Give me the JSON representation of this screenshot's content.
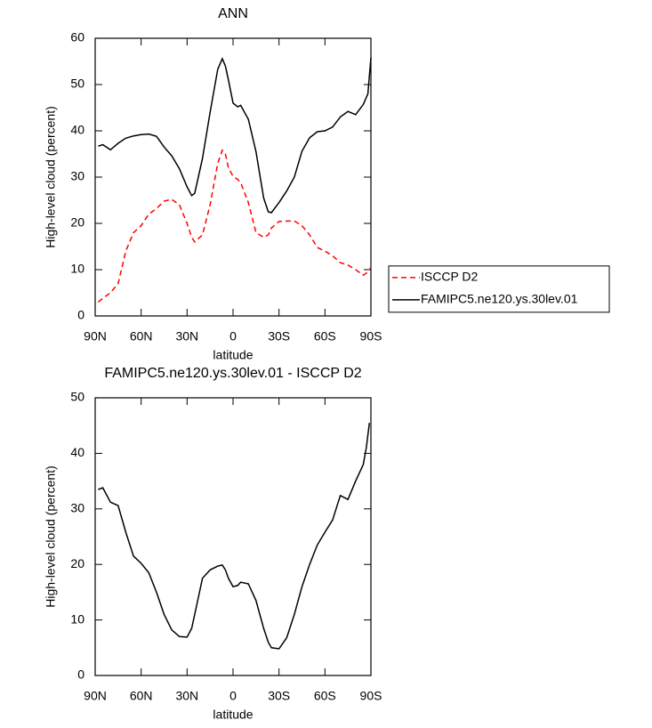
{
  "chart_data": [
    {
      "type": "line",
      "title": "ANN",
      "xlabel": "latitude",
      "ylabel": "High-level cloud (percent)",
      "x": [
        88,
        85,
        80,
        75,
        70,
        65,
        60,
        55,
        50,
        45,
        40,
        35,
        30,
        27,
        25,
        20,
        15,
        10,
        7,
        5,
        3,
        0,
        -3,
        -5,
        -10,
        -15,
        -20,
        -23,
        -25,
        -30,
        -35,
        -40,
        -45,
        -50,
        -55,
        -60,
        -65,
        -70,
        -75,
        -80,
        -85,
        -88,
        -90
      ],
      "series": [
        {
          "name": "ISCCP D2",
          "color": "#ff0000",
          "linestyle": "dashed",
          "values": [
            3,
            3.8,
            5,
            7,
            14,
            18,
            19.5,
            22,
            23.2,
            24.8,
            25.2,
            24,
            20,
            17,
            16,
            17.5,
            24,
            33,
            35.8,
            35,
            32,
            30.2,
            29.5,
            28.8,
            24.5,
            18,
            17,
            17.5,
            19,
            20.4,
            20.5,
            20.5,
            19.5,
            17.5,
            14.8,
            14,
            13,
            11.5,
            11,
            10,
            8.8,
            9.5,
            10.5
          ]
        },
        {
          "name": "FAMIPC5.ne120.ys.30lev.01",
          "color": "#000000",
          "linestyle": "solid",
          "values": [
            36.7,
            37,
            35.9,
            37.3,
            38.4,
            38.9,
            39.2,
            39.3,
            38.8,
            36.5,
            34.6,
            31.8,
            27.9,
            26,
            26.5,
            34,
            44,
            53.3,
            55.6,
            54,
            51,
            46,
            45.2,
            45.5,
            42.5,
            35.5,
            25.5,
            22.5,
            22.3,
            24.5,
            27,
            30,
            35.6,
            38.5,
            39.8,
            40,
            40.8,
            43,
            44.2,
            43.5,
            45.7,
            48,
            55.8
          ]
        }
      ],
      "xlim": [
        90,
        -90
      ],
      "xticks": [
        {
          "value": 90,
          "label": "90N"
        },
        {
          "value": 60,
          "label": "60N"
        },
        {
          "value": 30,
          "label": "30N"
        },
        0,
        {
          "value": -30,
          "label": "30S"
        },
        {
          "value": -60,
          "label": "60S"
        },
        {
          "value": -90,
          "label": "90S"
        }
      ],
      "ylim": [
        0,
        60
      ],
      "yticks": [
        0,
        10,
        20,
        30,
        40,
        50,
        60
      ],
      "grid": false,
      "legend": "right"
    },
    {
      "type": "line",
      "title": "FAMIPC5.ne120.ys.30lev.01 - ISCCP D2",
      "xlabel": "latitude",
      "ylabel": "High-level cloud (percent)",
      "x": [
        88,
        85,
        80,
        75,
        70,
        65,
        60,
        55,
        50,
        45,
        40,
        35,
        30,
        27,
        25,
        20,
        15,
        10,
        7,
        5,
        3,
        0,
        -3,
        -5,
        -10,
        -15,
        -20,
        -23,
        -25,
        -30,
        -35,
        -40,
        -45,
        -50,
        -55,
        -60,
        -65,
        -70,
        -75,
        -80,
        -85,
        -87,
        -89
      ],
      "series": [
        {
          "color": "#000000",
          "linestyle": "solid",
          "values": [
            33.5,
            33.8,
            31.2,
            30.6,
            25.8,
            21.5,
            20.2,
            18.5,
            15,
            11,
            8.2,
            7,
            6.9,
            8.5,
            11,
            17.5,
            19,
            19.7,
            19.9,
            19,
            17.5,
            16,
            16.2,
            16.8,
            16.5,
            13.5,
            8.5,
            6,
            5,
            4.8,
            6.8,
            11,
            16,
            20,
            23.5,
            25.8,
            28,
            32.4,
            31.7,
            35,
            38,
            41,
            45.5
          ]
        }
      ],
      "xlim": [
        90,
        -90
      ],
      "xticks": [
        {
          "value": 90,
          "label": "90N"
        },
        {
          "value": 60,
          "label": "60N"
        },
        {
          "value": 30,
          "label": "30N"
        },
        0,
        {
          "value": -30,
          "label": "30S"
        },
        {
          "value": -60,
          "label": "60S"
        },
        {
          "value": -90,
          "label": "90S"
        }
      ],
      "ylim": [
        0,
        50
      ],
      "yticks": [
        0,
        10,
        20,
        30,
        40,
        50
      ],
      "grid": false
    }
  ]
}
